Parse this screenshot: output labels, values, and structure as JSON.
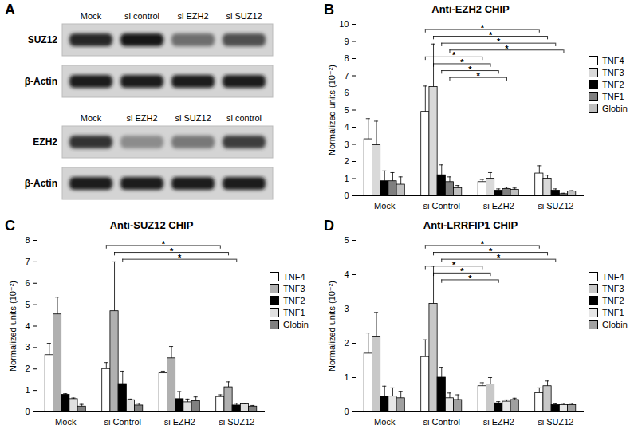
{
  "blot": {
    "panel": "A",
    "blocks": [
      {
        "lanes": [
          "Mock",
          "si control",
          "si  EZH2",
          "si SUZ12"
        ],
        "rows": [
          {
            "label": "SUZ12",
            "intensity": [
              0.85,
              0.95,
              0.5,
              0.65
            ]
          },
          {
            "label": "β-Actin",
            "intensity": [
              0.9,
              0.9,
              0.9,
              0.9
            ]
          }
        ]
      },
      {
        "lanes": [
          "Mock",
          "si EZH2",
          "si SUZ12",
          "si control"
        ],
        "rows": [
          {
            "label": "EZH2",
            "intensity": [
              0.8,
              0.35,
              0.45,
              0.75
            ]
          },
          {
            "label": "β-Actin",
            "intensity": [
              0.9,
              0.9,
              0.9,
              0.9
            ]
          }
        ]
      }
    ]
  },
  "chart_data": [
    {
      "type": "bar",
      "panel": "B",
      "title": "Anti-EZH2 CHIP",
      "y_label": "Normalized units (10⁻²)",
      "categories": [
        "Mock",
        "si Control",
        "si EZH2",
        "si SUZ12"
      ],
      "series": [
        {
          "name": "TNF4",
          "color": "#ffffff",
          "values": [
            3.3,
            4.9,
            0.8,
            1.3
          ],
          "errors": [
            1.2,
            1.5,
            0.15,
            0.45
          ]
        },
        {
          "name": "TNF3",
          "color": "#d9d9d9",
          "values": [
            2.95,
            6.35,
            1.0,
            1.0
          ],
          "errors": [
            1.4,
            2.5,
            0.35,
            0.2
          ]
        },
        {
          "name": "TNF2",
          "color": "#000000",
          "values": [
            0.85,
            1.2,
            0.3,
            0.3
          ],
          "errors": [
            0.6,
            0.6,
            0.1,
            0.1
          ]
        },
        {
          "name": "TNF1",
          "color": "#7f7f7f",
          "values": [
            0.85,
            0.8,
            0.4,
            0.1
          ],
          "errors": [
            0.5,
            0.3,
            0.1,
            0.05
          ]
        },
        {
          "name": "Globin",
          "color": "#bfbfbf",
          "values": [
            0.65,
            0.45,
            0.35,
            0.25
          ],
          "errors": [
            0.45,
            0.15,
            0.1,
            0.05
          ]
        }
      ],
      "ylim": [
        0,
        10
      ],
      "yticks": [
        0,
        1,
        2,
        3,
        4,
        5,
        6,
        7,
        8,
        9,
        10
      ],
      "legend": "right",
      "significance": [
        {
          "from": [
            "si Control",
            "TNF4"
          ],
          "to": [
            "si SUZ12",
            "TNF4"
          ],
          "label": "*"
        },
        {
          "from": [
            "si Control",
            "TNF3"
          ],
          "to": [
            "si SUZ12",
            "TNF3"
          ],
          "label": "*"
        },
        {
          "from": [
            "si Control",
            "TNF2"
          ],
          "to": [
            "si SUZ12",
            "TNF2"
          ],
          "label": "*"
        },
        {
          "from": [
            "si Control",
            "TNF1"
          ],
          "to": [
            "si SUZ12",
            "TNF1"
          ],
          "label": "*"
        },
        {
          "from": [
            "si Control",
            "TNF4"
          ],
          "to": [
            "si EZH2",
            "TNF4"
          ],
          "label": "*"
        },
        {
          "from": [
            "si Control",
            "TNF3"
          ],
          "to": [
            "si EZH2",
            "TNF3"
          ],
          "label": "*"
        },
        {
          "from": [
            "si Control",
            "TNF2"
          ],
          "to": [
            "si EZH2",
            "TNF2"
          ],
          "label": "*"
        },
        {
          "from": [
            "si Control",
            "TNF1"
          ],
          "to": [
            "si EZH2",
            "TNF1"
          ],
          "label": "*"
        }
      ]
    },
    {
      "type": "bar",
      "panel": "C",
      "title": "Anti-SUZ12 CHIP",
      "y_label": "Normalized units (10⁻²)",
      "categories": [
        "Mock",
        "si Control",
        "si EZH2",
        "si SUZ12"
      ],
      "series": [
        {
          "name": "TNF4",
          "color": "#ffffff",
          "values": [
            2.65,
            2.0,
            1.8,
            0.7
          ],
          "errors": [
            0.55,
            0.3,
            0.1,
            0.1
          ]
        },
        {
          "name": "TNF3",
          "color": "#b0b0b0",
          "values": [
            4.55,
            4.7,
            2.5,
            1.15
          ],
          "errors": [
            0.8,
            2.3,
            0.55,
            0.25
          ]
        },
        {
          "name": "TNF2",
          "color": "#000000",
          "values": [
            0.8,
            1.3,
            0.6,
            0.3
          ],
          "errors": [
            0.05,
            0.6,
            0.35,
            0.1
          ]
        },
        {
          "name": "TNF1",
          "color": "#e0e0e0",
          "values": [
            0.6,
            0.55,
            0.45,
            0.35
          ],
          "errors": [
            0.05,
            0.05,
            0.15,
            0.05
          ]
        },
        {
          "name": "Globin",
          "color": "#808080",
          "values": [
            0.25,
            0.3,
            0.5,
            0.25
          ],
          "errors": [
            0.1,
            0.1,
            0.2,
            0.05
          ]
        }
      ],
      "ylim": [
        0,
        8
      ],
      "yticks": [
        0,
        1,
        2,
        3,
        4,
        5,
        6,
        7,
        8
      ],
      "legend": "right",
      "significance": [
        {
          "from": [
            "si Control",
            "TNF4"
          ],
          "to": [
            "si SUZ12",
            "TNF4"
          ],
          "label": "*"
        },
        {
          "from": [
            "si Control",
            "TNF3"
          ],
          "to": [
            "si SUZ12",
            "TNF3"
          ],
          "label": "*"
        },
        {
          "from": [
            "si Control",
            "TNF2"
          ],
          "to": [
            "si SUZ12",
            "TNF2"
          ],
          "label": "*"
        }
      ]
    },
    {
      "type": "bar",
      "panel": "D",
      "title": "Anti-LRRFIP1 CHIP",
      "y_label": "Normalized units (10⁻²)",
      "categories": [
        "Mock",
        "si Control",
        "si EZH2",
        "si SUZ12"
      ],
      "series": [
        {
          "name": "TNF4",
          "color": "#ffffff",
          "values": [
            1.7,
            1.6,
            0.75,
            0.55
          ],
          "errors": [
            0.6,
            0.5,
            0.1,
            0.15
          ]
        },
        {
          "name": "TNF3",
          "color": "#c8c8c8",
          "values": [
            2.2,
            3.15,
            0.8,
            0.75
          ],
          "errors": [
            0.7,
            1.1,
            0.2,
            0.15
          ]
        },
        {
          "name": "TNF2",
          "color": "#000000",
          "values": [
            0.45,
            1.0,
            0.25,
            0.2
          ],
          "errors": [
            0.3,
            0.3,
            0.05,
            0.03
          ]
        },
        {
          "name": "TNF1",
          "color": "#e6e6e6",
          "values": [
            0.45,
            0.4,
            0.3,
            0.2
          ],
          "errors": [
            0.25,
            0.15,
            0.05,
            0.05
          ]
        },
        {
          "name": "Globin",
          "color": "#a0a0a0",
          "values": [
            0.4,
            0.35,
            0.35,
            0.2
          ],
          "errors": [
            0.2,
            0.15,
            0.05,
            0.05
          ]
        }
      ],
      "ylim": [
        0,
        5
      ],
      "yticks": [
        0,
        1,
        2,
        3,
        4,
        5
      ],
      "legend": "right",
      "significance": [
        {
          "from": [
            "si Control",
            "TNF4"
          ],
          "to": [
            "si SUZ12",
            "TNF4"
          ],
          "label": "*"
        },
        {
          "from": [
            "si Control",
            "TNF3"
          ],
          "to": [
            "si SUZ12",
            "TNF3"
          ],
          "label": "*"
        },
        {
          "from": [
            "si Control",
            "TNF2"
          ],
          "to": [
            "si SUZ12",
            "TNF2"
          ],
          "label": "*"
        },
        {
          "from": [
            "si Control",
            "TNF4"
          ],
          "to": [
            "si EZH2",
            "TNF4"
          ],
          "label": "*"
        },
        {
          "from": [
            "si Control",
            "TNF3"
          ],
          "to": [
            "si EZH2",
            "TNF3"
          ],
          "label": "*"
        },
        {
          "from": [
            "si Control",
            "TNF2"
          ],
          "to": [
            "si EZH2",
            "TNF2"
          ],
          "label": "*"
        }
      ]
    }
  ]
}
